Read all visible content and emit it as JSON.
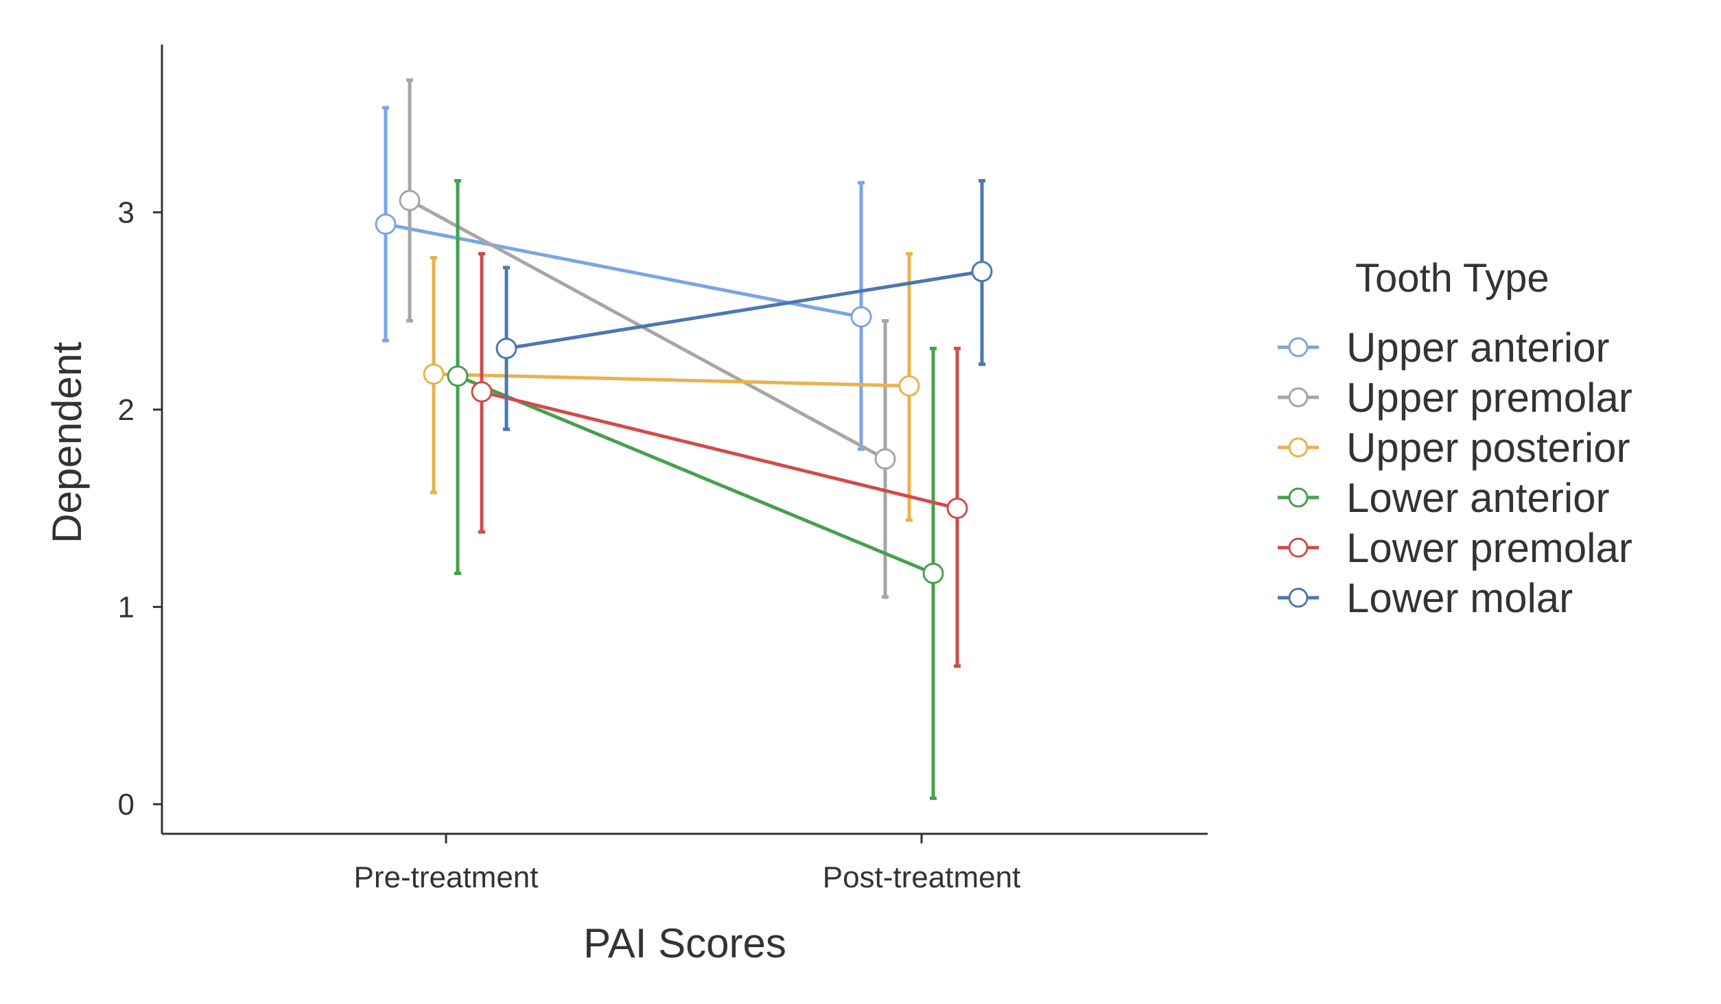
{
  "chart_data": {
    "type": "line",
    "title": "",
    "xlabel": "PAI Scores",
    "ylabel": "Dependent",
    "categories": [
      "Pre-treatment",
      "Post-treatment"
    ],
    "y_ticks": [
      0,
      1,
      2,
      3
    ],
    "ylim": [
      -0.15,
      3.85
    ],
    "grid": false,
    "legend": {
      "title": "Tooth Type",
      "position": "right"
    },
    "series": [
      {
        "name": "Upper anterior",
        "color": "#79a6e3",
        "values": [
          2.94,
          2.47
        ],
        "lower": [
          2.35,
          1.8
        ],
        "upper": [
          3.53,
          3.15
        ]
      },
      {
        "name": "Upper premolar",
        "color": "#a6a6a6",
        "values": [
          3.06,
          1.75
        ],
        "lower": [
          2.45,
          1.05
        ],
        "upper": [
          3.67,
          2.45
        ]
      },
      {
        "name": "Upper posterior",
        "color": "#e8b24e",
        "values": [
          2.18,
          2.12
        ],
        "lower": [
          1.58,
          1.44
        ],
        "upper": [
          2.77,
          2.79
        ]
      },
      {
        "name": "Lower anterior",
        "color": "#46a04c",
        "values": [
          2.17,
          1.17
        ],
        "lower": [
          1.17,
          0.03
        ],
        "upper": [
          3.16,
          2.31
        ]
      },
      {
        "name": "Lower premolar",
        "color": "#d24b4b",
        "values": [
          2.09,
          1.5
        ],
        "lower": [
          1.38,
          0.7
        ],
        "upper": [
          2.79,
          2.31
        ]
      },
      {
        "name": "Lower molar",
        "color": "#4a78b2",
        "values": [
          2.31,
          2.7
        ],
        "lower": [
          1.9,
          2.23
        ],
        "upper": [
          2.72,
          3.16
        ]
      }
    ]
  }
}
